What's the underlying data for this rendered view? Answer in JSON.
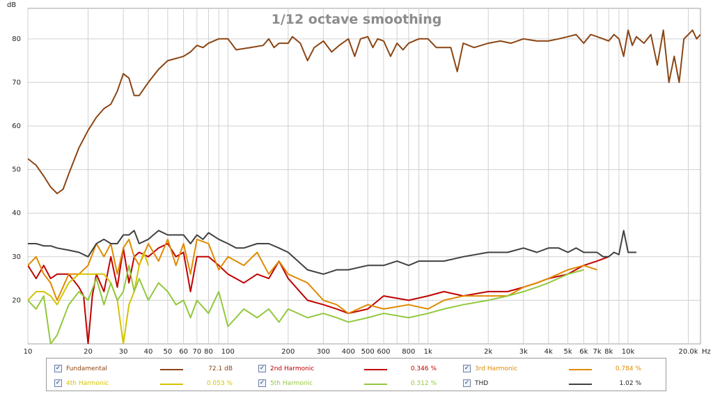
{
  "chart_data": {
    "type": "line",
    "title": "1/12 octave smoothing",
    "ylabel": "dB",
    "xunit": "Hz",
    "xscale": "log",
    "xlim": [
      10,
      23000
    ],
    "ylim": [
      10,
      87
    ],
    "grid": true,
    "legend_position": "bottom",
    "yticks": [
      20,
      30,
      40,
      50,
      60,
      70,
      80
    ],
    "xticks": [
      {
        "v": 10,
        "label": "10"
      },
      {
        "v": 20,
        "label": "20"
      },
      {
        "v": 30,
        "label": "30"
      },
      {
        "v": 40,
        "label": "40"
      },
      {
        "v": 50,
        "label": "50"
      },
      {
        "v": 60,
        "label": "60"
      },
      {
        "v": 70,
        "label": "70"
      },
      {
        "v": 80,
        "label": "80"
      },
      {
        "v": 100,
        "label": "100"
      },
      {
        "v": 200,
        "label": "200"
      },
      {
        "v": 300,
        "label": "300"
      },
      {
        "v": 400,
        "label": "400"
      },
      {
        "v": 500,
        "label": "500"
      },
      {
        "v": 600,
        "label": "600"
      },
      {
        "v": 800,
        "label": "800"
      },
      {
        "v": 1000,
        "label": "1k"
      },
      {
        "v": 2000,
        "label": "2k"
      },
      {
        "v": 3000,
        "label": "3k"
      },
      {
        "v": 4000,
        "label": "4k"
      },
      {
        "v": 5000,
        "label": "5k"
      },
      {
        "v": 6000,
        "label": "6k"
      },
      {
        "v": 7000,
        "label": "7k"
      },
      {
        "v": 8000,
        "label": "8k"
      },
      {
        "v": 10000,
        "label": "10k"
      },
      {
        "v": 20000,
        "label": "20.0k"
      }
    ],
    "series": [
      {
        "name": "Fundamental",
        "color": "#8b4513",
        "legend_value": "72.1 dB",
        "checked": true,
        "x": [
          10,
          11,
          12,
          13,
          14,
          15,
          16,
          18,
          20,
          22,
          24,
          26,
          28,
          30,
          32,
          34,
          36,
          40,
          45,
          50,
          55,
          60,
          65,
          70,
          75,
          80,
          90,
          100,
          110,
          130,
          150,
          160,
          170,
          180,
          200,
          210,
          230,
          250,
          270,
          300,
          330,
          360,
          400,
          430,
          460,
          500,
          530,
          560,
          600,
          650,
          700,
          750,
          800,
          900,
          1000,
          1100,
          1200,
          1300,
          1400,
          1500,
          1700,
          2000,
          2300,
          2600,
          3000,
          3500,
          4000,
          4500,
          5000,
          5500,
          6000,
          6500,
          7000,
          7500,
          8000,
          8500,
          9000,
          9500,
          10000,
          10500,
          11000,
          12000,
          13000,
          14000,
          15000,
          16000,
          17000,
          18000,
          19000,
          20000,
          21000,
          22000,
          23000
        ],
        "y": [
          52.5,
          51,
          48.5,
          46,
          44.5,
          45.5,
          49,
          55,
          59,
          62,
          64,
          65,
          68,
          72,
          71,
          67,
          67,
          70,
          73,
          75,
          75.5,
          76,
          77,
          78.5,
          78,
          79,
          80,
          80,
          77.5,
          78,
          78.5,
          80,
          78,
          79,
          79,
          80.5,
          79,
          75,
          78,
          79.5,
          77,
          78.5,
          80,
          76,
          80,
          80.5,
          78,
          80,
          79.5,
          76,
          79,
          77.5,
          79,
          80,
          80,
          78,
          78,
          78,
          72.5,
          79,
          78,
          79,
          79.5,
          79,
          80,
          79.5,
          79.5,
          80,
          80.5,
          81,
          79,
          81,
          80.5,
          80,
          79.5,
          81,
          80,
          76,
          82,
          78.5,
          80.5,
          79,
          81,
          74,
          82,
          70,
          76,
          70,
          80,
          81,
          82,
          80,
          81
        ]
      },
      {
        "name": "2nd Harmonic",
        "color": "#c00000",
        "legend_value": "0.346 %",
        "checked": true,
        "x": [
          10,
          11,
          12,
          13,
          14,
          16,
          18,
          19,
          20,
          21,
          22,
          24,
          26,
          28,
          30,
          32,
          34,
          36,
          40,
          45,
          50,
          55,
          60,
          65,
          70,
          80,
          90,
          100,
          120,
          140,
          160,
          180,
          200,
          250,
          300,
          350,
          400,
          500,
          600,
          800,
          1000,
          1200,
          1500,
          2000,
          2500,
          3000,
          3500,
          4000,
          5000,
          6000,
          7000,
          8000
        ],
        "y": [
          28,
          25,
          28,
          25,
          26,
          26,
          23,
          21,
          10,
          21,
          26,
          22,
          30,
          23,
          32,
          24,
          30,
          31,
          30,
          32,
          33,
          30,
          31,
          22,
          30,
          30,
          28,
          26,
          24,
          26,
          25,
          29,
          25,
          20,
          19,
          18,
          17,
          18,
          21,
          20,
          21,
          22,
          21,
          22,
          22,
          23,
          24,
          25,
          26,
          28,
          29,
          30
        ]
      },
      {
        "name": "3rd Harmonic",
        "color": "#e08a00",
        "legend_value": "0.784 %",
        "checked": true,
        "x": [
          10,
          11,
          12,
          13,
          14,
          16,
          18,
          20,
          22,
          24,
          26,
          28,
          30,
          32,
          34,
          36,
          40,
          45,
          50,
          55,
          60,
          65,
          70,
          80,
          90,
          100,
          120,
          140,
          160,
          180,
          200,
          250,
          300,
          350,
          400,
          500,
          600,
          800,
          1000,
          1200,
          1500,
          2000,
          2500,
          3000,
          3500,
          4000,
          5000,
          6000,
          7000
        ],
        "y": [
          28,
          30,
          26,
          24,
          20,
          26,
          26,
          28,
          33,
          30,
          33,
          26,
          32,
          34,
          30,
          28,
          33,
          29,
          34,
          28,
          33,
          26,
          34,
          33,
          27,
          30,
          28,
          31,
          26,
          29,
          26,
          24,
          20,
          19,
          17,
          19,
          18,
          19,
          18,
          20,
          21,
          21,
          21,
          23,
          24,
          25,
          27,
          28,
          27
        ]
      },
      {
        "name": "4th Harmonic",
        "color": "#d4c400",
        "legend_value": "0.053 %",
        "checked": true,
        "x": [
          10,
          11,
          12,
          13,
          14,
          16,
          18,
          20,
          22,
          24,
          26,
          28,
          30,
          32,
          34,
          36,
          38,
          40
        ],
        "y": [
          20,
          22,
          22,
          21,
          19,
          24,
          26,
          26,
          26,
          26,
          24,
          20,
          10,
          19,
          22,
          28,
          31,
          28
        ]
      },
      {
        "name": "5th Harmonic",
        "color": "#92c83e",
        "legend_value": "0.312 %",
        "checked": true,
        "x": [
          10,
          11,
          12,
          13,
          14,
          16,
          18,
          20,
          22,
          24,
          26,
          28,
          30,
          32,
          34,
          36,
          40,
          45,
          50,
          55,
          60,
          65,
          70,
          80,
          90,
          100,
          120,
          140,
          160,
          180,
          200,
          250,
          300,
          350,
          400,
          500,
          600,
          800,
          1000,
          1200,
          1500,
          2000,
          2500,
          3000,
          3500,
          4000,
          5000,
          6000
        ],
        "y": [
          20,
          18,
          21,
          10,
          12,
          19,
          22,
          20,
          25,
          19,
          24,
          20,
          22,
          28,
          22,
          25,
          20,
          24,
          22,
          19,
          20,
          16,
          20,
          17,
          22,
          14,
          18,
          16,
          18,
          15,
          18,
          16,
          17,
          16,
          15,
          16,
          17,
          16,
          17,
          18,
          19,
          20,
          21,
          22,
          23,
          24,
          26,
          27
        ]
      },
      {
        "name": "THD",
        "color": "#404040",
        "legend_value": "1.02 %",
        "checked": true,
        "x": [
          10,
          11,
          12,
          13,
          14,
          16,
          18,
          20,
          22,
          24,
          26,
          28,
          30,
          32,
          34,
          36,
          40,
          45,
          50,
          55,
          60,
          65,
          70,
          75,
          80,
          90,
          100,
          110,
          120,
          140,
          160,
          180,
          200,
          250,
          300,
          350,
          400,
          500,
          600,
          700,
          800,
          900,
          1000,
          1200,
          1500,
          2000,
          2500,
          3000,
          3500,
          4000,
          4500,
          5000,
          5500,
          6000,
          7000,
          7500,
          8000,
          8500,
          9000,
          9500,
          10000,
          10500,
          11000
        ],
        "y": [
          33,
          33,
          32.5,
          32.5,
          32,
          31.5,
          31,
          30,
          33,
          34,
          33,
          33,
          35,
          35,
          36,
          33,
          34,
          36,
          35,
          35,
          35,
          33,
          35,
          34,
          35.5,
          34,
          33,
          32,
          32,
          33,
          33,
          32,
          31,
          27,
          26,
          27,
          27,
          28,
          28,
          29,
          28,
          29,
          29,
          29,
          30,
          31,
          31,
          32,
          31,
          32,
          32,
          31,
          32,
          31,
          31,
          30,
          30,
          31,
          30.5,
          36,
          31,
          31,
          31
        ]
      }
    ]
  }
}
